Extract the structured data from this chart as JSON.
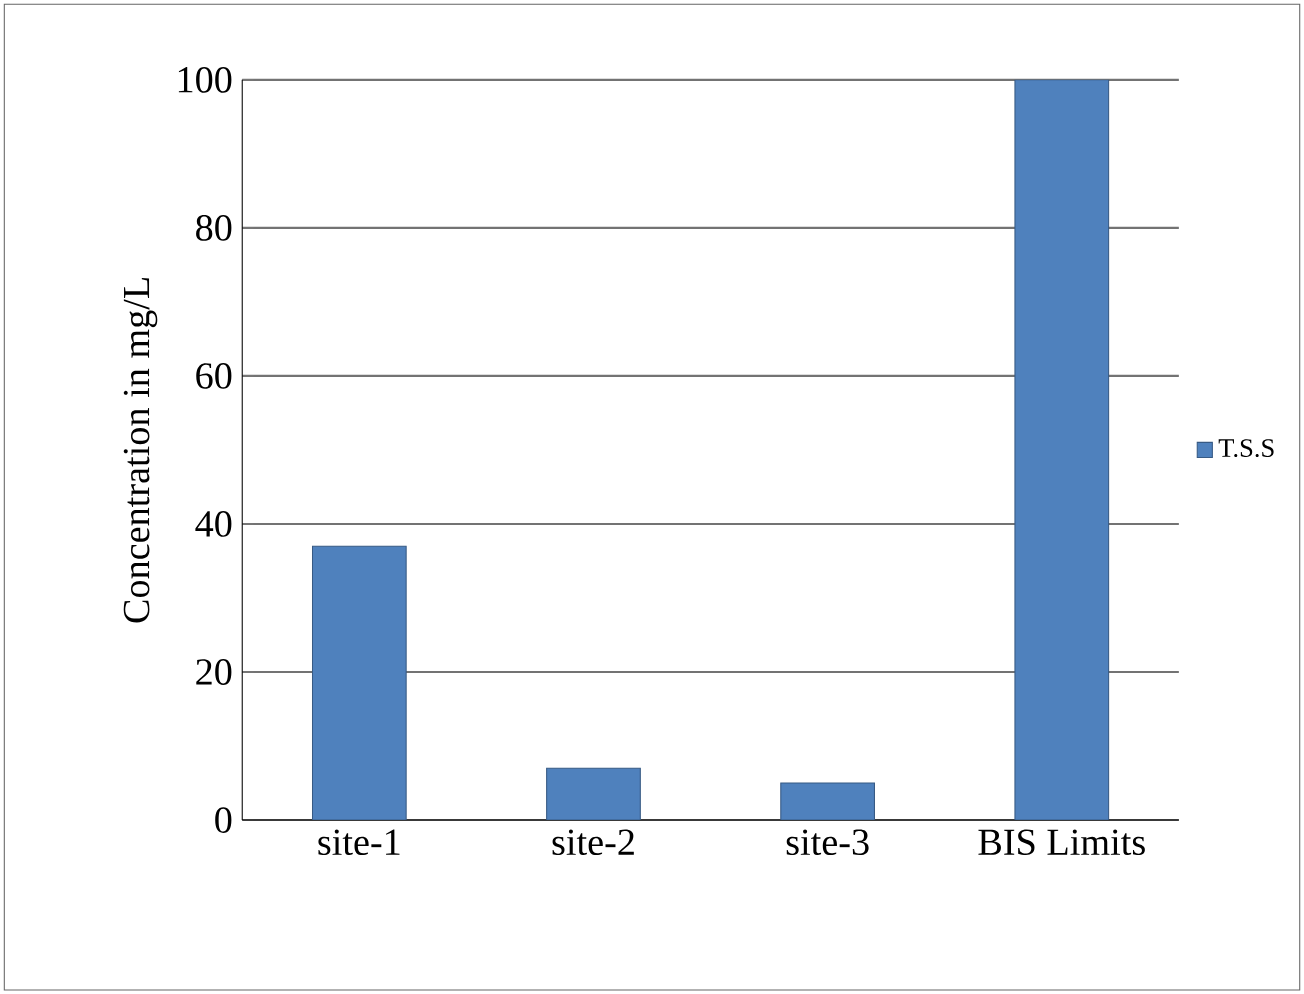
{
  "chart_data": {
    "type": "bar",
    "ylabel": "Concentration in mg/L",
    "categories": [
      "site-1",
      "site-2",
      "site-3",
      "BIS Limits"
    ],
    "series": [
      {
        "name": "T.S.S",
        "color": "#4f81bd",
        "values": [
          37,
          7,
          5,
          100
        ]
      }
    ],
    "ylim": [
      0,
      100
    ],
    "yticks": [
      0,
      20,
      40,
      60,
      80,
      100
    ],
    "grid": "y",
    "legend": "right"
  }
}
